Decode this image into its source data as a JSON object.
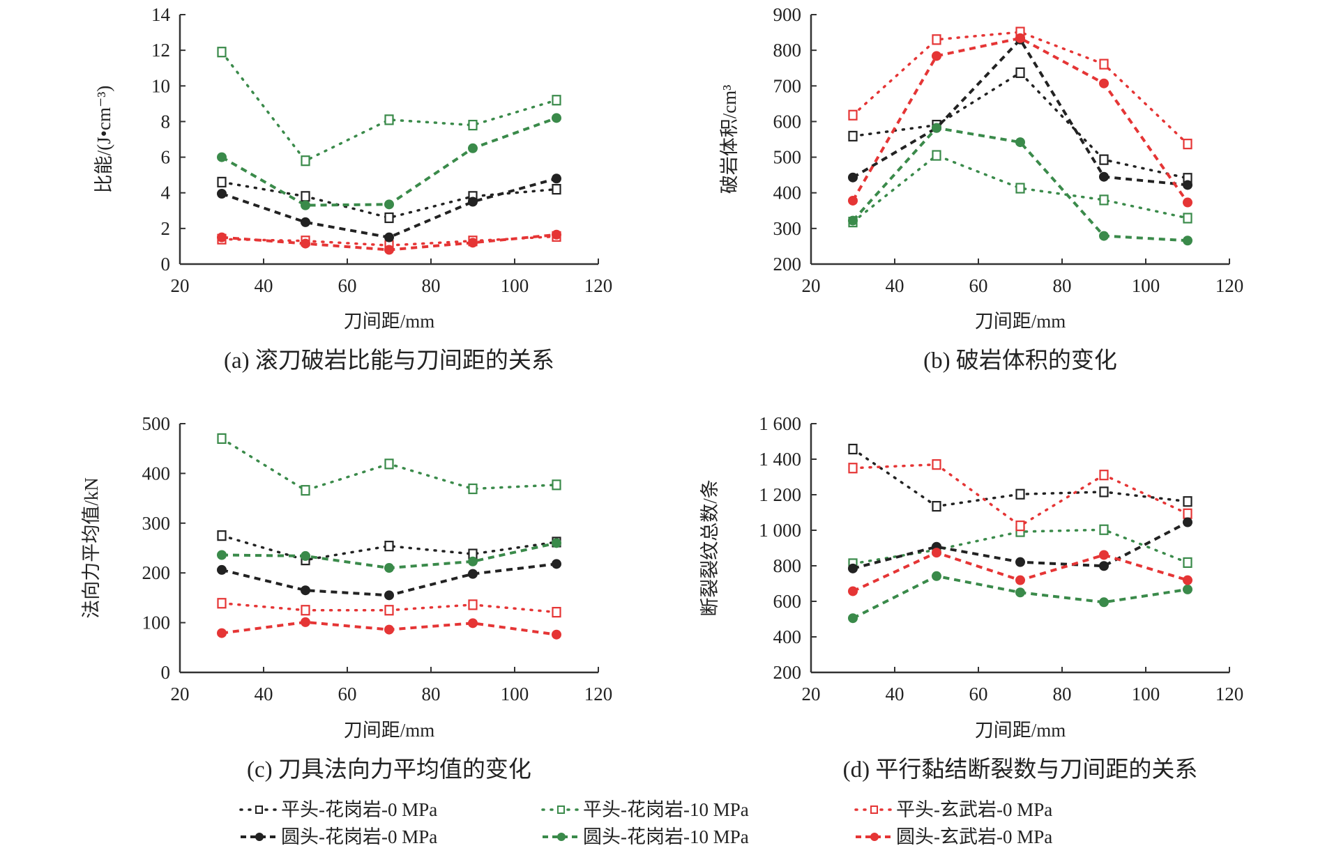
{
  "colors": {
    "black": "#222222",
    "green": "#3a8a4a",
    "red": "#e53535"
  },
  "legend": [
    {
      "label": "平头-花岗岩-0 MPa",
      "color": "black",
      "marker": "square",
      "line": "dotted"
    },
    {
      "label": "平头-花岗岩-10 MPa",
      "color": "green",
      "marker": "square",
      "line": "dotted"
    },
    {
      "label": "平头-玄武岩-0 MPa",
      "color": "red",
      "marker": "square",
      "line": "dotted"
    },
    {
      "label": "圆头-花岗岩-0 MPa",
      "color": "black",
      "marker": "circle",
      "line": "dashed"
    },
    {
      "label": "圆头-花岗岩-10 MPa",
      "color": "green",
      "marker": "circle",
      "line": "dashed"
    },
    {
      "label": "圆头-玄武岩-0 MPa",
      "color": "red",
      "marker": "circle",
      "line": "dashed"
    }
  ],
  "chart_data": [
    {
      "id": "a",
      "type": "line",
      "title": "(a) 滚刀破岩比能与刀间距的关系",
      "xlabel": "刀间距/mm",
      "ylabel": "比能/(J•cm⁻³)",
      "xlim": [
        20,
        120
      ],
      "ylim": [
        0,
        14
      ],
      "xticks": [
        20,
        40,
        60,
        80,
        100,
        120
      ],
      "yticks": [
        0,
        2,
        4,
        6,
        8,
        10,
        12,
        14
      ],
      "ytick_labels": [
        "0",
        "2",
        "4",
        "6",
        "8",
        "10",
        "12",
        "14"
      ],
      "grid": false,
      "x": [
        30,
        50,
        70,
        90,
        110
      ],
      "series": [
        {
          "name": "平头-花岗岩-0 MPa",
          "values": [
            4.6,
            3.8,
            2.6,
            3.8,
            4.2
          ]
        },
        {
          "name": "平头-花岗岩-10 MPa",
          "values": [
            11.9,
            5.8,
            8.1,
            7.8,
            9.2
          ]
        },
        {
          "name": "平头-玄武岩-0 MPa",
          "values": [
            1.4,
            1.3,
            1.05,
            1.3,
            1.55
          ]
        },
        {
          "name": "圆头-花岗岩-0 MPa",
          "values": [
            3.95,
            2.35,
            1.5,
            3.5,
            4.8
          ]
        },
        {
          "name": "圆头-花岗岩-10 MPa",
          "values": [
            6.0,
            3.3,
            3.35,
            6.5,
            8.2
          ]
        },
        {
          "name": "圆头-玄武岩-0 MPa",
          "values": [
            1.5,
            1.15,
            0.8,
            1.2,
            1.65
          ]
        }
      ]
    },
    {
      "id": "b",
      "type": "line",
      "title": "(b) 破岩体积的变化",
      "xlabel": "刀间距/mm",
      "ylabel": "破岩体积/cm³",
      "xlim": [
        20,
        120
      ],
      "ylim": [
        200,
        900
      ],
      "xticks": [
        20,
        40,
        60,
        80,
        100,
        120
      ],
      "yticks": [
        200,
        300,
        400,
        500,
        600,
        700,
        800,
        900
      ],
      "ytick_labels": [
        "200",
        "300",
        "400",
        "500",
        "600",
        "700",
        "800",
        "900"
      ],
      "grid": false,
      "x": [
        30,
        50,
        70,
        90,
        110
      ],
      "series": [
        {
          "name": "平头-花岗岩-0 MPa",
          "values": [
            559,
            590,
            737,
            493,
            441
          ]
        },
        {
          "name": "平头-花岗岩-10 MPa",
          "values": [
            318,
            505,
            413,
            380,
            329
          ]
        },
        {
          "name": "平头-玄武岩-0 MPa",
          "values": [
            618,
            830,
            851,
            761,
            537
          ]
        },
        {
          "name": "圆头-花岗岩-0 MPa",
          "values": [
            443,
            582,
            830,
            445,
            422
          ]
        },
        {
          "name": "圆头-花岗岩-10 MPa",
          "values": [
            322,
            582,
            542,
            279,
            266
          ]
        },
        {
          "name": "圆头-玄武岩-0 MPa",
          "values": [
            378,
            784,
            834,
            707,
            373
          ]
        }
      ]
    },
    {
      "id": "c",
      "type": "line",
      "title": "(c) 刀具法向力平均值的变化",
      "xlabel": "刀间距/mm",
      "ylabel": "法向力平均值/kN",
      "xlim": [
        20,
        120
      ],
      "ylim": [
        0,
        500
      ],
      "xticks": [
        20,
        40,
        60,
        80,
        100,
        120
      ],
      "yticks": [
        0,
        100,
        200,
        300,
        400,
        500
      ],
      "ytick_labels": [
        "0",
        "100",
        "200",
        "300",
        "400",
        "500"
      ],
      "grid": false,
      "x": [
        30,
        50,
        70,
        90,
        110
      ],
      "series": [
        {
          "name": "平头-花岗岩-0 MPa",
          "values": [
            275,
            226,
            254,
            238,
            262
          ]
        },
        {
          "name": "平头-花岗岩-10 MPa",
          "values": [
            470,
            366,
            419,
            369,
            377
          ]
        },
        {
          "name": "平头-玄武岩-0 MPa",
          "values": [
            139,
            125,
            125,
            136,
            121
          ]
        },
        {
          "name": "圆头-花岗岩-0 MPa",
          "values": [
            206,
            165,
            155,
            198,
            218
          ]
        },
        {
          "name": "圆头-花岗岩-10 MPa",
          "values": [
            236,
            234,
            210,
            223,
            260
          ]
        },
        {
          "name": "圆头-玄武岩-0 MPa",
          "values": [
            79,
            101,
            86,
            99,
            76
          ]
        }
      ]
    },
    {
      "id": "d",
      "type": "line",
      "title": "(d) 平行黏结断裂数与刀间距的关系",
      "xlabel": "刀间距/mm",
      "ylabel": "断裂裂纹总数/条",
      "xlim": [
        20,
        120
      ],
      "ylim": [
        200,
        1600
      ],
      "xticks": [
        20,
        40,
        60,
        80,
        100,
        120
      ],
      "yticks": [
        200,
        400,
        600,
        800,
        1000,
        1200,
        1400,
        1600
      ],
      "ytick_labels": [
        "200",
        "400",
        "600",
        "800",
        "1 000",
        "1 200",
        "1 400",
        "1 600"
      ],
      "grid": false,
      "x": [
        30,
        50,
        70,
        90,
        110
      ],
      "series": [
        {
          "name": "平头-花岗岩-0 MPa",
          "values": [
            1457,
            1135,
            1203,
            1216,
            1162
          ]
        },
        {
          "name": "平头-花岗岩-10 MPa",
          "values": [
            812,
            890,
            992,
            1003,
            818
          ]
        },
        {
          "name": "平头-玄武岩-0 MPa",
          "values": [
            1350,
            1370,
            1025,
            1311,
            1093
          ]
        },
        {
          "name": "圆头-花岗岩-0 MPa",
          "values": [
            785,
            907,
            821,
            799,
            1045
          ]
        },
        {
          "name": "圆头-花岗岩-10 MPa",
          "values": [
            505,
            742,
            650,
            595,
            667
          ]
        },
        {
          "name": "圆头-玄武岩-0 MPa",
          "values": [
            657,
            874,
            719,
            861,
            719
          ]
        }
      ]
    }
  ]
}
